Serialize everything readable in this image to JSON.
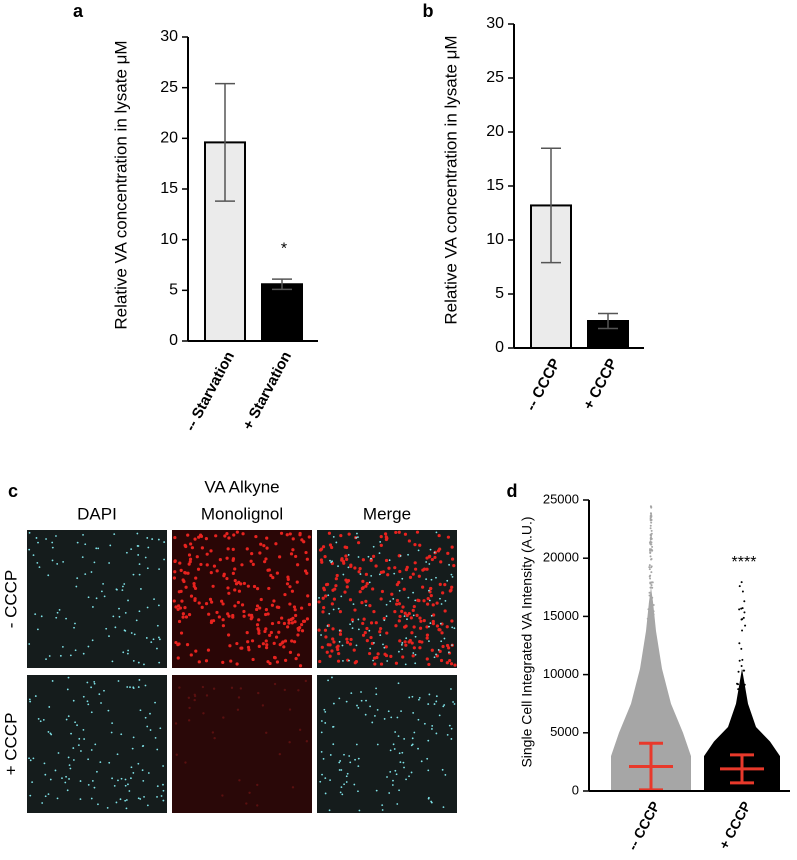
{
  "chart_data": [
    {
      "type": "bar",
      "panel_label": "a",
      "ylabel": "Relative VA concentration in lysate μM",
      "categories": [
        "-- Starvation",
        "+ Starvation"
      ],
      "values": [
        19.6,
        5.6
      ],
      "errors": [
        5.8,
        0.5
      ],
      "colors": [
        "#ebebeb",
        "#000000"
      ],
      "error_color": "#555555",
      "significance": "*",
      "ylim": [
        0,
        30
      ],
      "yticks": [
        0,
        5,
        10,
        15,
        20,
        25,
        30
      ]
    },
    {
      "type": "bar",
      "panel_label": "b",
      "ylabel": "Relative VA concentration in lysate μM",
      "categories": [
        "-- CCCP",
        "+ CCCP"
      ],
      "values": [
        13.2,
        2.5
      ],
      "errors": [
        5.3,
        0.7
      ],
      "colors": [
        "#ebebeb",
        "#000000"
      ],
      "error_color": "#555555",
      "ylim": [
        0,
        30
      ],
      "yticks": [
        0,
        5,
        10,
        15,
        20,
        25,
        30
      ]
    },
    {
      "type": "dot",
      "panel_label": "d",
      "ylabel": "Single Cell Integrated VA Intensity (A.U.)",
      "categories": [
        "-- CCCP",
        "+ CCCP"
      ],
      "values": [
        2100,
        1900
      ],
      "errors": [
        2000,
        1200
      ],
      "colors": [
        "#a6a6a6",
        "#000000"
      ],
      "error_color": "#e8392b",
      "significance": "****",
      "ylim": [
        0,
        25000
      ],
      "yticks": [
        0,
        5000,
        10000,
        15000,
        20000,
        25000
      ]
    }
  ],
  "image_grid": {
    "panel_label": "c",
    "columns": [
      [
        "DAPI"
      ],
      [
        "VA Alkyne",
        "Monolignol"
      ],
      [
        "Merge"
      ]
    ],
    "rows": [
      "- CCCP",
      "+ CCCP"
    ]
  }
}
